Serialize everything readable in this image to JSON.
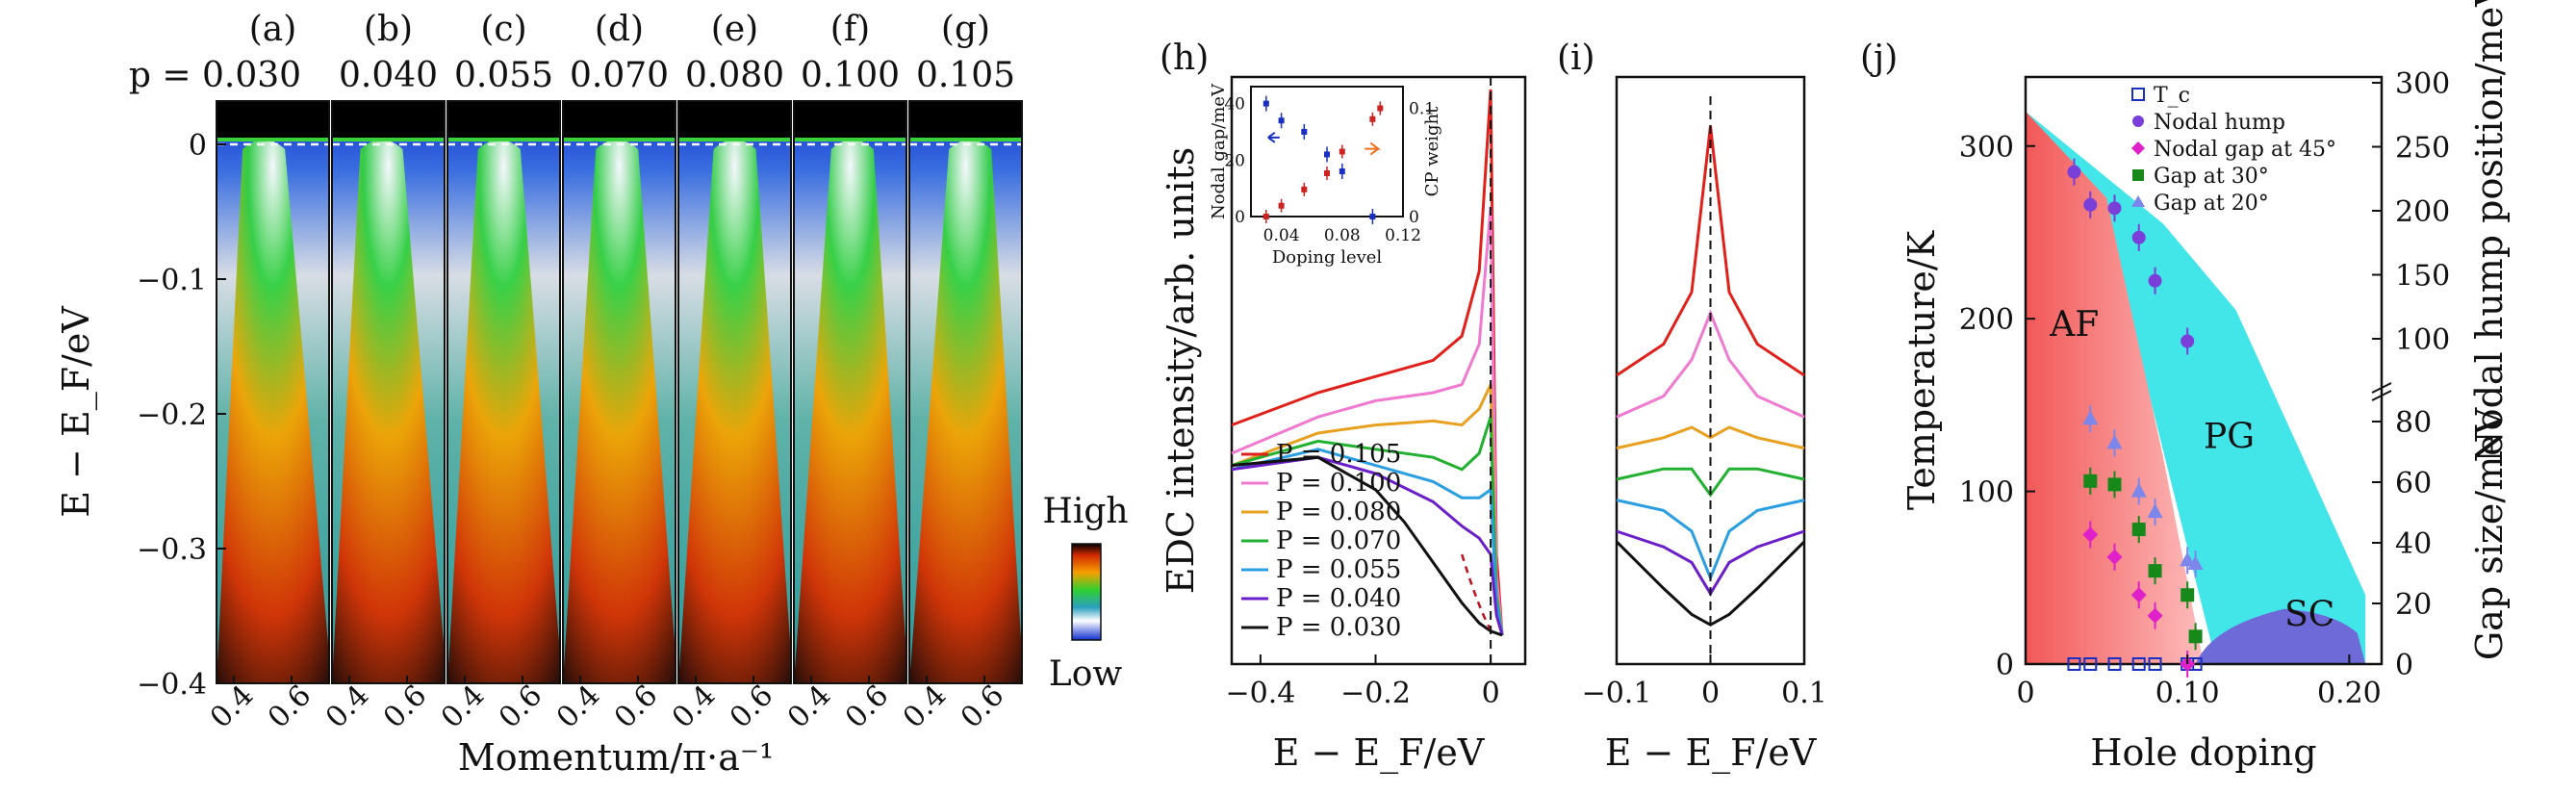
{
  "colors": {
    "bg": "#ffffff",
    "axis": "#111111",
    "tc": "#1a2fbf",
    "nodal": "#7a3fd8",
    "g45": "#e020c8",
    "g30": "#17881a",
    "g20": "#7d86ea",
    "af": "#f26b6b",
    "pg": "#43e6e8",
    "sc": "#6e6ad8",
    "inset_left": "#1a2fbf",
    "inset_right": "#cc2222"
  },
  "panel_labels": [
    "(a)",
    "(b)",
    "(c)",
    "(d)",
    "(e)",
    "(f)",
    "(g)",
    "(h)",
    "(i)",
    "(j)"
  ],
  "panels_ag": {
    "doping_prefix": "p = ",
    "dopings": [
      "0.030",
      "0.040",
      "0.055",
      "0.070",
      "0.080",
      "0.100",
      "0.105"
    ],
    "ylabel": "E − E_F/eV",
    "xlabel": "Momentum/π·a⁻¹",
    "yticks": [
      "0",
      "−0.1",
      "−0.2",
      "−0.3",
      "−0.4"
    ],
    "xticks": [
      "0.4",
      "0.6"
    ],
    "colorbar": {
      "high": "High",
      "low": "Low"
    }
  },
  "chart_data": [
    {
      "type": "line",
      "panel": "(h)",
      "xlabel": "E − E_F/eV",
      "ylabel": "EDC intensity/arb. units",
      "xlim": [
        -0.45,
        0.06
      ],
      "xticks": [
        "−0.4",
        "−0.2",
        "0"
      ],
      "series": [
        {
          "name": "P = 0.105",
          "color": "#e0201a",
          "x": [
            -0.45,
            -0.3,
            -0.2,
            -0.1,
            -0.05,
            -0.02,
            0,
            0.01,
            0.02
          ],
          "y": [
            0.52,
            0.6,
            0.64,
            0.68,
            0.74,
            0.9,
            1.35,
            0.2,
            0.0
          ]
        },
        {
          "name": "P = 0.100",
          "color": "#ef7ad0",
          "x": [
            -0.45,
            -0.3,
            -0.2,
            -0.1,
            -0.05,
            -0.02,
            0,
            0.01,
            0.02
          ],
          "y": [
            0.45,
            0.54,
            0.58,
            0.6,
            0.62,
            0.72,
            1.06,
            0.15,
            0.0
          ]
        },
        {
          "name": "P = 0.080",
          "color": "#e8a020",
          "x": [
            -0.45,
            -0.3,
            -0.2,
            -0.1,
            -0.05,
            -0.02,
            0,
            0.01,
            0.02
          ],
          "y": [
            0.42,
            0.5,
            0.52,
            0.53,
            0.52,
            0.56,
            0.62,
            0.1,
            0.0
          ]
        },
        {
          "name": "P = 0.070",
          "color": "#22b030",
          "x": [
            -0.45,
            -0.3,
            -0.2,
            -0.1,
            -0.05,
            -0.02,
            0,
            0.01,
            0.02
          ],
          "y": [
            0.42,
            0.48,
            0.46,
            0.44,
            0.41,
            0.45,
            0.54,
            0.1,
            0.0
          ]
        },
        {
          "name": "P = 0.055",
          "color": "#2a9ee0",
          "x": [
            -0.45,
            -0.3,
            -0.2,
            -0.1,
            -0.05,
            -0.02,
            0,
            0.01,
            0.02
          ],
          "y": [
            0.41,
            0.46,
            0.42,
            0.38,
            0.34,
            0.34,
            0.36,
            0.08,
            0.0
          ]
        },
        {
          "name": "P = 0.040",
          "color": "#6a1fc8",
          "x": [
            -0.45,
            -0.3,
            -0.2,
            -0.1,
            -0.05,
            -0.02,
            0,
            0.01,
            0.02
          ],
          "y": [
            0.41,
            0.44,
            0.4,
            0.33,
            0.27,
            0.24,
            0.2,
            0.05,
            0.0
          ]
        },
        {
          "name": "P = 0.030",
          "color": "#111111",
          "x": [
            -0.45,
            -0.3,
            -0.2,
            -0.15,
            -0.1,
            -0.05,
            -0.02,
            0,
            0.02
          ],
          "y": [
            0.42,
            0.44,
            0.36,
            0.28,
            0.18,
            0.08,
            0.03,
            0.01,
            0.0
          ]
        }
      ],
      "inset": {
        "xlabel": "Doping level",
        "ylabel_left": "Nodal gap/meV",
        "ylabel_right": "CP weight",
        "xticks": [
          "0.04",
          "0.08",
          "0.12"
        ],
        "yticks_left": [
          "0",
          "20",
          "40"
        ],
        "yticks_right": [
          "0",
          "0.1"
        ],
        "nodal_gap": {
          "x": [
            0.03,
            0.04,
            0.055,
            0.07,
            0.08,
            0.1
          ],
          "y": [
            40,
            34,
            30,
            22,
            16,
            0
          ]
        },
        "cp_weight": {
          "x": [
            0.03,
            0.04,
            0.055,
            0.07,
            0.08,
            0.1,
            0.105
          ],
          "y": [
            0.0,
            0.01,
            0.025,
            0.04,
            0.06,
            0.09,
            0.1
          ]
        }
      }
    },
    {
      "type": "line",
      "panel": "(i)",
      "xlabel": "E − E_F/eV",
      "xlim": [
        -0.1,
        0.1
      ],
      "xticks": [
        "−0.1",
        "0",
        "0.1"
      ],
      "series": [
        {
          "name": "P = 0.105",
          "color": "#e0201a",
          "x": [
            -0.1,
            -0.05,
            -0.02,
            0,
            0.02,
            0.05,
            0.1
          ],
          "y": [
            0.5,
            0.56,
            0.66,
            0.98,
            0.66,
            0.56,
            0.5
          ]
        },
        {
          "name": "P = 0.100",
          "color": "#ef7ad0",
          "x": [
            -0.1,
            -0.05,
            -0.02,
            0,
            0.02,
            0.05,
            0.1
          ],
          "y": [
            0.42,
            0.46,
            0.53,
            0.62,
            0.53,
            0.46,
            0.42
          ]
        },
        {
          "name": "P = 0.080",
          "color": "#e8a020",
          "x": [
            -0.1,
            -0.05,
            -0.02,
            0,
            0.02,
            0.05,
            0.1
          ],
          "y": [
            0.36,
            0.38,
            0.4,
            0.38,
            0.4,
            0.38,
            0.36
          ]
        },
        {
          "name": "P = 0.070",
          "color": "#22b030",
          "x": [
            -0.1,
            -0.05,
            -0.02,
            0,
            0.02,
            0.05,
            0.1
          ],
          "y": [
            0.3,
            0.32,
            0.32,
            0.27,
            0.32,
            0.32,
            0.3
          ]
        },
        {
          "name": "P = 0.055",
          "color": "#2a9ee0",
          "x": [
            -0.1,
            -0.05,
            -0.02,
            0,
            0.02,
            0.05,
            0.1
          ],
          "y": [
            0.26,
            0.24,
            0.2,
            0.11,
            0.2,
            0.24,
            0.26
          ]
        },
        {
          "name": "P = 0.040",
          "color": "#6a1fc8",
          "x": [
            -0.1,
            -0.05,
            -0.02,
            0,
            0.02,
            0.05,
            0.1
          ],
          "y": [
            0.2,
            0.17,
            0.14,
            0.08,
            0.14,
            0.17,
            0.2
          ]
        },
        {
          "name": "P = 0.030",
          "color": "#111111",
          "x": [
            -0.1,
            -0.05,
            -0.02,
            0,
            0.02,
            0.05,
            0.1
          ],
          "y": [
            0.18,
            0.09,
            0.04,
            0.02,
            0.04,
            0.09,
            0.18
          ]
        }
      ]
    },
    {
      "type": "scatter",
      "panel": "(j)",
      "xlabel": "Hole doping",
      "ylabel_left": "Temperature/K",
      "ylabel_right_top": "Nodal hump position/meV",
      "ylabel_right_bottom": "Gap size/meV",
      "xlim": [
        0,
        0.22
      ],
      "xticks": [
        "0",
        "0.10",
        "0.20"
      ],
      "ylim_left": [
        0,
        340
      ],
      "yticks_left": [
        "0",
        "100",
        "200",
        "300"
      ],
      "yticks_right_top": [
        "100",
        "150",
        "200",
        "250",
        "300"
      ],
      "yticks_right_bottom": [
        "0",
        "20",
        "40",
        "60",
        "80"
      ],
      "regions": [
        {
          "label": "AF"
        },
        {
          "label": "PG"
        },
        {
          "label": "SC"
        }
      ],
      "series": [
        {
          "name": "T_c",
          "marker": "open-square",
          "color": "#1a2fbf",
          "x": [
            0.03,
            0.04,
            0.055,
            0.07,
            0.08,
            0.1,
            0.105
          ],
          "y": [
            0,
            0,
            0,
            0,
            0,
            0,
            0
          ]
        },
        {
          "name": "Nodal hump",
          "marker": "circle",
          "color": "#7a3fd8",
          "x": [
            0.03,
            0.04,
            0.055,
            0.07,
            0.08,
            0.1
          ],
          "y": [
            285,
            266,
            264,
            247,
            222,
            187
          ]
        },
        {
          "name": "Nodal gap at 45°",
          "marker": "diamond",
          "color": "#e020c8",
          "x": [
            0.04,
            0.055,
            0.07,
            0.08,
            0.1
          ],
          "y": [
            75,
            62,
            40,
            28,
            0
          ]
        },
        {
          "name": "Gap at 30°",
          "marker": "square",
          "color": "#17881a",
          "x": [
            0.04,
            0.055,
            0.07,
            0.08,
            0.1,
            0.105
          ],
          "y": [
            106,
            104,
            78,
            54,
            40,
            16
          ]
        },
        {
          "name": "Gap at 20°",
          "marker": "triangle",
          "color": "#7d86ea",
          "x": [
            0.04,
            0.055,
            0.07,
            0.08,
            0.1,
            0.105
          ],
          "y": [
            142,
            128,
            100,
            88,
            60,
            58
          ]
        }
      ]
    }
  ]
}
